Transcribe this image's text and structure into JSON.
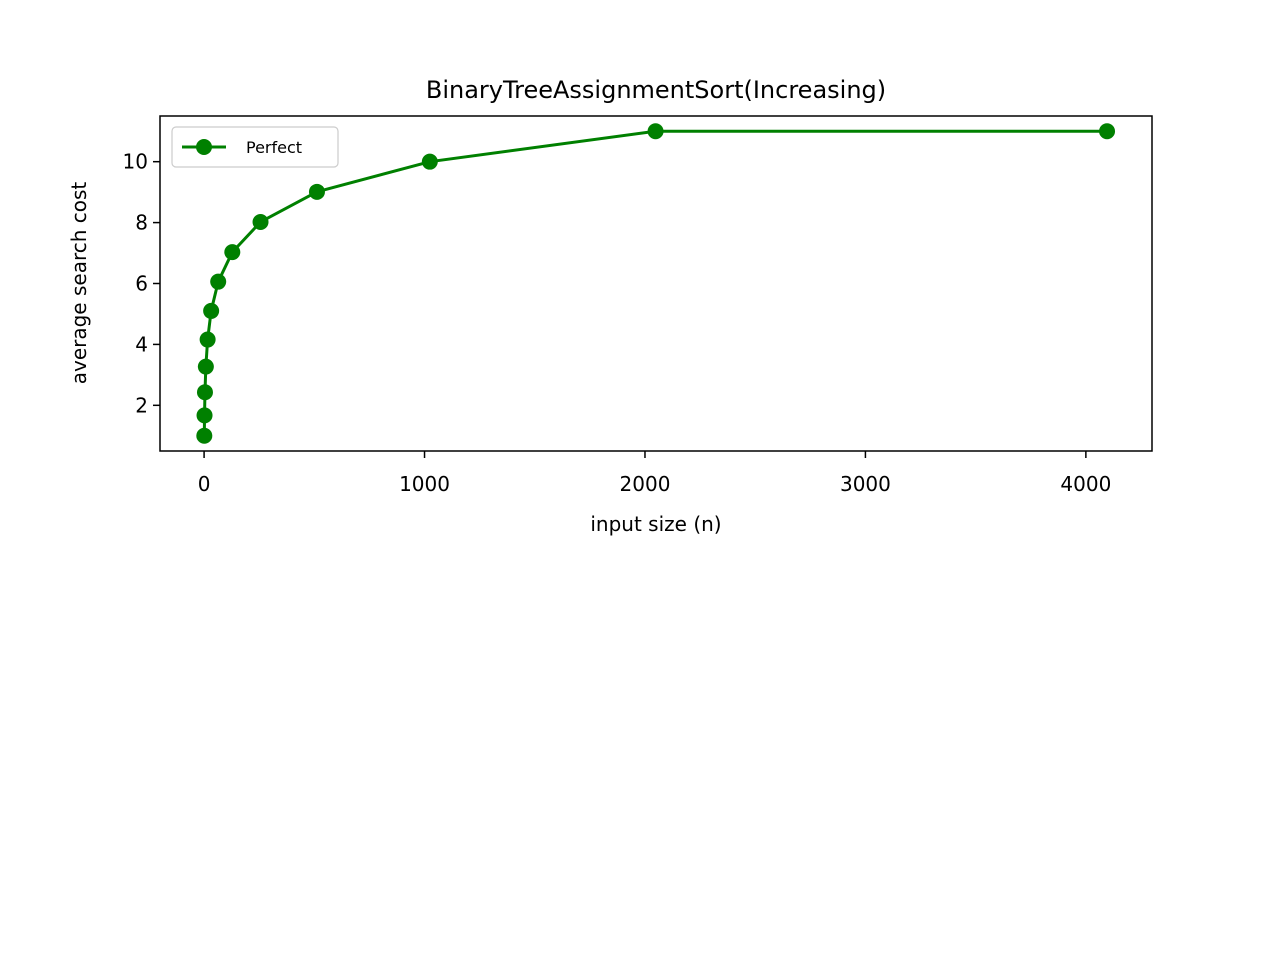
{
  "chart_data": {
    "type": "line",
    "title": "BinaryTreeAssignmentSort(Increasing)",
    "xlabel": "input size (n)",
    "ylabel": "average search cost",
    "xlim": [
      -200,
      4300
    ],
    "ylim": [
      0.5,
      11.5
    ],
    "xticks": [
      0,
      1000,
      2000,
      3000,
      4000
    ],
    "yticks": [
      2,
      4,
      6,
      8,
      10
    ],
    "grid": false,
    "legend_position": "upper-left",
    "series": [
      {
        "name": "Perfect",
        "color": "#008000",
        "marker": "circle",
        "x": [
          1,
          2,
          4,
          8,
          16,
          32,
          64,
          128,
          256,
          512,
          1024,
          2048,
          4096
        ],
        "y": [
          1.0,
          1.67,
          2.43,
          3.27,
          4.16,
          5.1,
          6.06,
          7.03,
          8.02,
          9.01,
          10.0,
          11.0,
          11.0
        ]
      }
    ]
  }
}
